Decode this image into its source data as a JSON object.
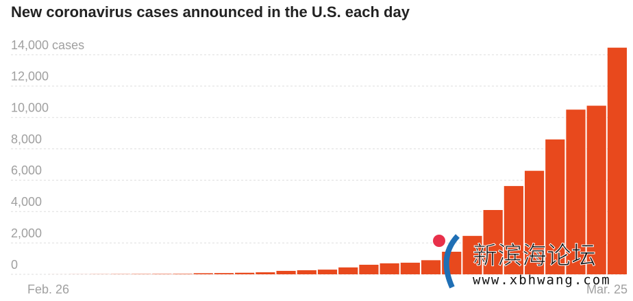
{
  "chart_data": {
    "type": "bar",
    "title": "New coronavirus cases announced in the U.S. each day",
    "categories": [
      "Feb. 26",
      null,
      null,
      null,
      null,
      null,
      null,
      null,
      null,
      null,
      null,
      null,
      null,
      null,
      null,
      null,
      null,
      null,
      null,
      null,
      null,
      null,
      null,
      null,
      null,
      null,
      null,
      null,
      "Mar. 25"
    ],
    "values": [
      0,
      2,
      5,
      10,
      15,
      20,
      25,
      30,
      70,
      80,
      100,
      130,
      220,
      260,
      300,
      440,
      610,
      700,
      740,
      900,
      1440,
      2450,
      4100,
      5630,
      6600,
      8600,
      10500,
      10750,
      14450
    ],
    "color": "#e8491d",
    "ylim": [
      0,
      14000
    ],
    "yticks": [
      {
        "value": 0,
        "label": "0"
      },
      {
        "value": 2000,
        "label": "2,000"
      },
      {
        "value": 4000,
        "label": "4,000"
      },
      {
        "value": 6000,
        "label": "6,000"
      },
      {
        "value": 8000,
        "label": "8,000"
      },
      {
        "value": 10000,
        "label": "10,000"
      },
      {
        "value": 12000,
        "label": "12,000"
      },
      {
        "value": 14000,
        "label": "14,000 cases"
      }
    ],
    "grid": true,
    "watermark": {
      "name": "新滨海论坛",
      "url": "www.xbhwang.com"
    }
  }
}
